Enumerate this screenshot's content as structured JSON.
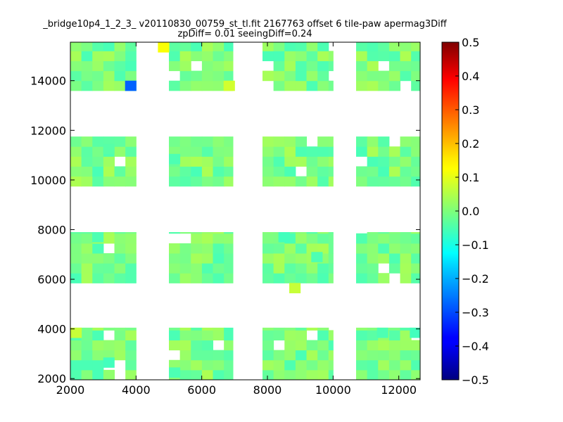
{
  "chart_data": {
    "type": "heatmap",
    "title": "_bridge10p4_1_2_3_ v20110830_00759_st_tl.fit 2167763 offset 6 tile-paw apermag3Diff",
    "subtitle": "zpDiff= 0.01 seeingDiff=0.24",
    "xlim": [
      2000,
      12650
    ],
    "ylim": [
      1950,
      15550
    ],
    "x_ticks": [
      "2000",
      "4000",
      "6000",
      "8000",
      "10000",
      "12000"
    ],
    "x_tick_values": [
      2000,
      4000,
      6000,
      8000,
      10000,
      12000
    ],
    "y_ticks": [
      "2000",
      "4000",
      "6000",
      "8000",
      "10000",
      "12000",
      "14000"
    ],
    "y_tick_values": [
      2000,
      4000,
      6000,
      8000,
      10000,
      12000,
      14000
    ],
    "colorbar": {
      "colormap": "jet",
      "range": [
        -0.5,
        0.5
      ],
      "ticks": [
        "0.5",
        "0.4",
        "0.3",
        "0.2",
        "0.1",
        "0.0",
        "−0.1",
        "−0.2",
        "−0.3",
        "−0.4",
        "−0.5"
      ],
      "tick_values": [
        0.5,
        0.4,
        0.3,
        0.2,
        0.1,
        0.0,
        -0.1,
        -0.2,
        -0.3,
        -0.4,
        -0.5
      ]
    },
    "cell_size": [
      335,
      400
    ],
    "blocks": [
      {
        "x": [
          2000,
          4000
        ],
        "y": [
          13600,
          15550
        ]
      },
      {
        "x": [
          5000,
          6950
        ],
        "y": [
          13600,
          15550
        ]
      },
      {
        "x": [
          7850,
          10000
        ],
        "y": [
          13600,
          15550
        ]
      },
      {
        "x": [
          10700,
          12650
        ],
        "y": [
          13600,
          15550
        ]
      },
      {
        "x": [
          2000,
          4000
        ],
        "y": [
          9750,
          11750
        ]
      },
      {
        "x": [
          5000,
          6950
        ],
        "y": [
          9750,
          11750
        ]
      },
      {
        "x": [
          7850,
          10000
        ],
        "y": [
          9750,
          11750
        ]
      },
      {
        "x": [
          10700,
          12650
        ],
        "y": [
          9750,
          11750
        ]
      },
      {
        "x": [
          2000,
          4000
        ],
        "y": [
          5850,
          7900
        ]
      },
      {
        "x": [
          5000,
          6950
        ],
        "y": [
          5850,
          7900
        ]
      },
      {
        "x": [
          7850,
          10000
        ],
        "y": [
          5850,
          7900
        ]
      },
      {
        "x": [
          10700,
          12650
        ],
        "y": [
          5850,
          7900
        ]
      },
      {
        "x": [
          2000,
          4000
        ],
        "y": [
          1950,
          4050
        ]
      },
      {
        "x": [
          5000,
          6950
        ],
        "y": [
          1950,
          4050
        ]
      },
      {
        "x": [
          7850,
          10000
        ],
        "y": [
          1950,
          4050
        ]
      },
      {
        "x": [
          10700,
          12650
        ],
        "y": [
          1950,
          4050
        ]
      }
    ],
    "highlight_cells": [
      {
        "x": 3665,
        "y": 13600,
        "value": -0.28
      },
      {
        "x": 4665,
        "y": 15150,
        "value": 0.12
      },
      {
        "x": 6665,
        "y": 13600,
        "value": 0.08
      },
      {
        "x": 3000,
        "y": 11050,
        "value": -0.04
      },
      {
        "x": 5000,
        "y": 10650,
        "value": -0.05
      },
      {
        "x": 8335,
        "y": 7500,
        "value": -0.06
      },
      {
        "x": 2665,
        "y": 7500,
        "value": -0.05
      },
      {
        "x": 9335,
        "y": 6700,
        "value": -0.05
      },
      {
        "x": 8665,
        "y": 5450,
        "value": 0.07
      },
      {
        "x": 2000,
        "y": 3650,
        "value": 0.07
      },
      {
        "x": 11335,
        "y": 3650,
        "value": -0.05
      },
      {
        "x": 12335,
        "y": 3650,
        "value": -0.06
      },
      {
        "x": 3000,
        "y": 2450,
        "value": -0.06
      },
      {
        "x": 5000,
        "y": 2050,
        "value": -0.05
      }
    ]
  }
}
